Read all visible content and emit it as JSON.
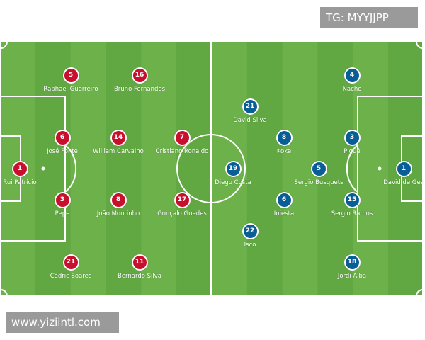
{
  "colors": {
    "pitch_light": "#6cb14a",
    "pitch_dark": "#62a842",
    "lines": "#ffffff",
    "portugal": "#c8102e",
    "spain": "#0a5e96"
  },
  "watermarks": {
    "top": "TG: MYYJJPP",
    "bottom": "www.yiziintl.com"
  },
  "teams": [
    {
      "side": "left",
      "color": "#c8102e",
      "players": [
        {
          "number": "1",
          "name": "Rui Patrício"
        },
        {
          "number": "5",
          "name": "Raphaël Guerreiro"
        },
        {
          "number": "16",
          "name": "Bruno Fernandes"
        },
        {
          "number": "6",
          "name": "José Fonte"
        },
        {
          "number": "14",
          "name": "William Carvalho"
        },
        {
          "number": "7",
          "name": "Cristiano Ronaldo"
        },
        {
          "number": "3",
          "name": "Pepe"
        },
        {
          "number": "8",
          "name": "João Moutinho"
        },
        {
          "number": "17",
          "name": "Gonçalo Guedes"
        },
        {
          "number": "21",
          "name": "Cédric Soares"
        },
        {
          "number": "11",
          "name": "Bernardo Silva"
        }
      ]
    },
    {
      "side": "right",
      "color": "#0a5e96",
      "players": [
        {
          "number": "4",
          "name": "Nacho"
        },
        {
          "number": "21",
          "name": "David Silva"
        },
        {
          "number": "8",
          "name": "Koke"
        },
        {
          "number": "3",
          "name": "Piqué"
        },
        {
          "number": "19",
          "name": "Diego Costa"
        },
        {
          "number": "5",
          "name": "Sergio Busquets"
        },
        {
          "number": "1",
          "name": "David de Gea"
        },
        {
          "number": "6",
          "name": "Iniesta"
        },
        {
          "number": "15",
          "name": "Sergio Ramos"
        },
        {
          "number": "22",
          "name": "Isco"
        },
        {
          "number": "18",
          "name": "Jordi Alba"
        }
      ]
    }
  ]
}
